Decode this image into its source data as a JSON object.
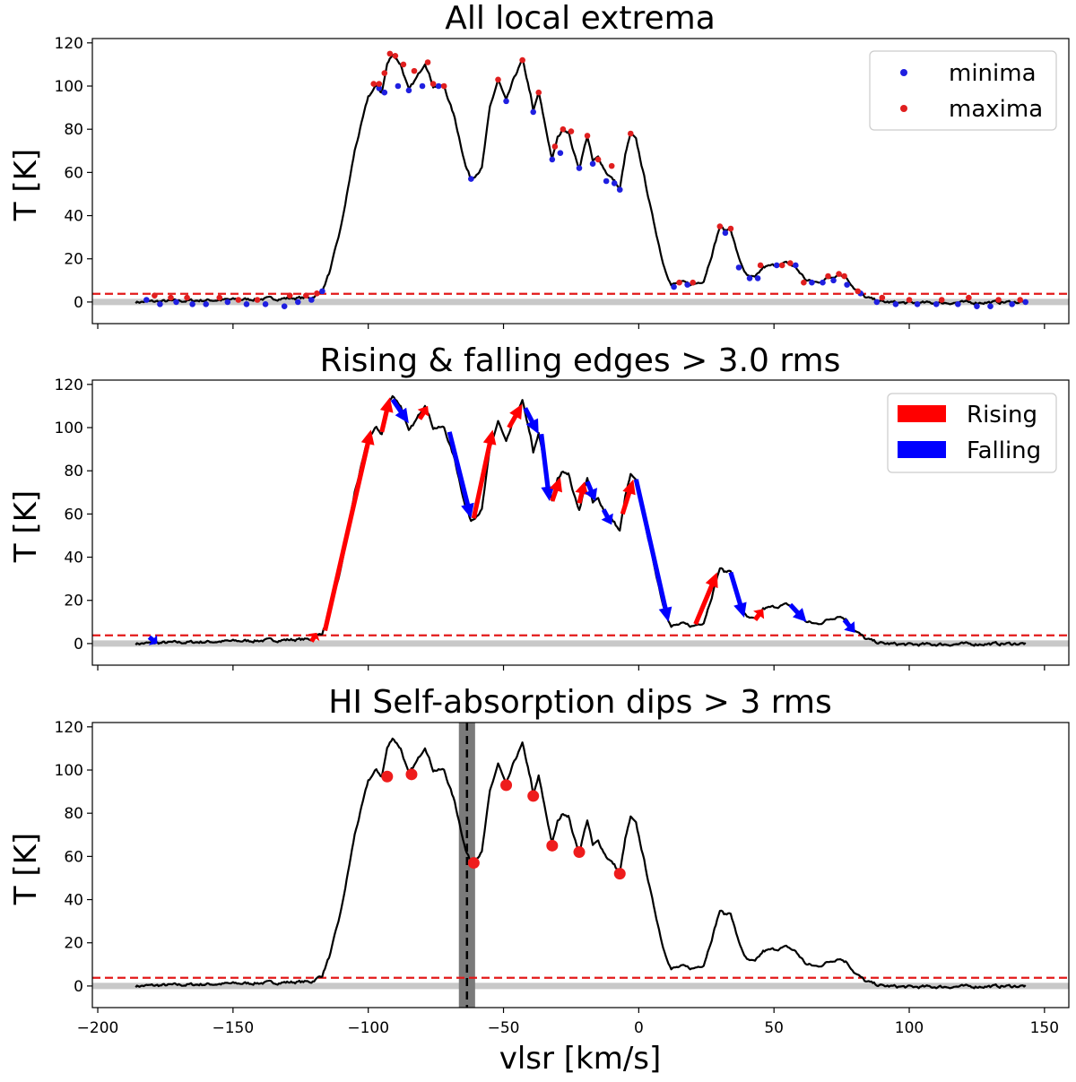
{
  "chart_data": [
    {
      "type": "line",
      "title": "All local extrema",
      "xlabel": "vlsr [km/s]",
      "ylabel": "T [K]",
      "xlim": [
        -202,
        159
      ],
      "ylim": [
        -10,
        122
      ],
      "yticks": [
        0,
        20,
        40,
        60,
        80,
        100,
        120
      ],
      "threshold": 3.8,
      "baseline": 0,
      "legend": {
        "position": "top-right",
        "entries": [
          {
            "label": "minima",
            "color": "#1f1fe0"
          },
          {
            "label": "maxima",
            "color": "#e01f1f"
          }
        ]
      },
      "minima": [
        [
          -182,
          1
        ],
        [
          -177,
          -1
        ],
        [
          -171,
          0
        ],
        [
          -165,
          -1
        ],
        [
          -160,
          -1
        ],
        [
          -152,
          0
        ],
        [
          -145,
          -1
        ],
        [
          -138,
          -1
        ],
        [
          -131,
          -2
        ],
        [
          -126,
          0
        ],
        [
          -121,
          1
        ],
        [
          -117,
          5
        ],
        [
          -96,
          99
        ],
        [
          -94,
          97
        ],
        [
          -89,
          100
        ],
        [
          -85,
          98
        ],
        [
          -80,
          100
        ],
        [
          -74,
          100
        ],
        [
          -62,
          57
        ],
        [
          -49,
          93
        ],
        [
          -39,
          88
        ],
        [
          -32,
          66
        ],
        [
          -29,
          69
        ],
        [
          -22,
          62
        ],
        [
          -17,
          64
        ],
        [
          -12,
          56
        ],
        [
          -9,
          55
        ],
        [
          -7,
          52
        ],
        [
          13,
          7
        ],
        [
          18,
          8
        ],
        [
          32,
          32
        ],
        [
          37,
          16
        ],
        [
          41,
          11
        ],
        [
          44,
          11
        ],
        [
          51,
          17
        ],
        [
          58,
          17
        ],
        [
          64,
          9
        ],
        [
          68,
          9
        ],
        [
          72,
          10
        ],
        [
          77,
          8
        ],
        [
          82,
          4
        ],
        [
          88,
          0
        ],
        [
          95,
          -1
        ],
        [
          103,
          -1
        ],
        [
          110,
          -1
        ],
        [
          118,
          -1
        ],
        [
          125,
          -2
        ],
        [
          130,
          -2
        ],
        [
          138,
          -1
        ],
        [
          143,
          0
        ]
      ],
      "maxima": [
        [
          -179,
          3
        ],
        [
          -173,
          2
        ],
        [
          -167,
          2
        ],
        [
          -155,
          2
        ],
        [
          -148,
          1
        ],
        [
          -141,
          1
        ],
        [
          -129,
          3
        ],
        [
          -123,
          3
        ],
        [
          -119,
          4
        ],
        [
          -98,
          101
        ],
        [
          -96,
          101
        ],
        [
          -94,
          106
        ],
        [
          -92,
          115
        ],
        [
          -90,
          114
        ],
        [
          -87,
          110
        ],
        [
          -83,
          107
        ],
        [
          -78,
          111
        ],
        [
          -76,
          101
        ],
        [
          -72,
          100
        ],
        [
          -52,
          103
        ],
        [
          -43,
          112
        ],
        [
          -37,
          97
        ],
        [
          -31,
          72
        ],
        [
          -28,
          80
        ],
        [
          -25,
          79
        ],
        [
          -19,
          77
        ],
        [
          -15,
          66
        ],
        [
          -10,
          63
        ],
        [
          -3,
          78
        ],
        [
          15,
          9
        ],
        [
          20,
          9
        ],
        [
          30,
          35
        ],
        [
          34,
          34
        ],
        [
          45,
          17
        ],
        [
          53,
          17
        ],
        [
          56,
          18
        ],
        [
          61,
          9
        ],
        [
          70,
          12
        ],
        [
          74,
          13
        ],
        [
          76,
          12
        ],
        [
          81,
          5
        ],
        [
          90,
          2
        ],
        [
          100,
          1
        ],
        [
          112,
          1
        ],
        [
          122,
          2
        ],
        [
          133,
          1
        ],
        [
          141,
          1
        ]
      ]
    },
    {
      "type": "line",
      "title": "Rising & falling edges > 3.0 rms",
      "xlabel": "vlsr [km/s]",
      "ylabel": "T [K]",
      "xlim": [
        -202,
        159
      ],
      "ylim": [
        -10,
        122
      ],
      "yticks": [
        0,
        20,
        40,
        60,
        80,
        100,
        120
      ],
      "threshold": 3.8,
      "baseline": 0,
      "legend": {
        "position": "top-right",
        "entries": [
          {
            "label": "Rising",
            "color": "#ff0000"
          },
          {
            "label": "Falling",
            "color": "#0000ff"
          }
        ]
      },
      "edges": [
        {
          "kind": "rising",
          "from": [
            -116,
            6
          ],
          "to": [
            -99,
            99
          ]
        },
        {
          "kind": "rising",
          "from": [
            -95,
            98
          ],
          "to": [
            -92,
            114
          ]
        },
        {
          "kind": "falling",
          "from": [
            -91,
            113
          ],
          "to": [
            -85,
            102
          ]
        },
        {
          "kind": "rising",
          "from": [
            -81,
            104
          ],
          "to": [
            -78,
            110
          ]
        },
        {
          "kind": "falling",
          "from": [
            -70,
            98
          ],
          "to": [
            -62,
            58
          ]
        },
        {
          "kind": "rising",
          "from": [
            -61,
            58
          ],
          "to": [
            -54,
            99
          ]
        },
        {
          "kind": "rising",
          "from": [
            -48,
            100
          ],
          "to": [
            -43,
            111
          ]
        },
        {
          "kind": "falling",
          "from": [
            -42,
            109
          ],
          "to": [
            -37,
            97
          ]
        },
        {
          "kind": "falling",
          "from": [
            -36,
            97
          ],
          "to": [
            -33,
            66
          ]
        },
        {
          "kind": "rising",
          "from": [
            -32,
            66
          ],
          "to": [
            -29,
            77
          ]
        },
        {
          "kind": "rising",
          "from": [
            -22,
            65
          ],
          "to": [
            -20,
            75
          ]
        },
        {
          "kind": "falling",
          "from": [
            -19,
            75
          ],
          "to": [
            -16,
            66
          ]
        },
        {
          "kind": "falling",
          "from": [
            -13,
            62
          ],
          "to": [
            -10,
            55
          ]
        },
        {
          "kind": "rising",
          "from": [
            -6,
            60
          ],
          "to": [
            -2,
            76
          ]
        },
        {
          "kind": "falling",
          "from": [
            -1,
            76
          ],
          "to": [
            11,
            10
          ]
        },
        {
          "kind": "rising",
          "from": [
            21,
            9
          ],
          "to": [
            29,
            33
          ]
        },
        {
          "kind": "falling",
          "from": [
            34,
            33
          ],
          "to": [
            39,
            12
          ]
        },
        {
          "kind": "rising",
          "from": [
            43,
            11
          ],
          "to": [
            46,
            16
          ]
        },
        {
          "kind": "falling",
          "from": [
            56,
            18
          ],
          "to": [
            62,
            10
          ]
        },
        {
          "kind": "falling",
          "from": [
            76,
            11
          ],
          "to": [
            80,
            5
          ]
        },
        {
          "kind": "rising",
          "from": [
            -121,
            1
          ],
          "to": [
            -119,
            5
          ]
        },
        {
          "kind": "falling",
          "from": [
            -181,
            3
          ],
          "to": [
            -178,
            0
          ]
        }
      ]
    },
    {
      "type": "line",
      "title": "HI Self-absorption dips > 3 rms",
      "xlabel": "vlsr [km/s]",
      "ylabel": "T [K]",
      "xlim": [
        -202,
        159
      ],
      "ylim": [
        -10,
        122
      ],
      "xticks": [
        -200,
        -150,
        -100,
        -50,
        0,
        50,
        100,
        150
      ],
      "xtick_labels": [
        "−200",
        "−150",
        "−100",
        "−50",
        "0",
        "50",
        "100",
        "150"
      ],
      "yticks": [
        0,
        20,
        40,
        60,
        80,
        100,
        120
      ],
      "threshold": 3.8,
      "baseline": 0,
      "vline": {
        "x": -63.5,
        "band": [
          -66.5,
          -60.5
        ]
      },
      "dips": [
        [
          -93,
          97
        ],
        [
          -84,
          98
        ],
        [
          -61,
          57
        ],
        [
          -49,
          93
        ],
        [
          -39,
          88
        ],
        [
          -32,
          65
        ],
        [
          -22,
          62
        ],
        [
          -7,
          52
        ]
      ]
    }
  ],
  "spectrum": {
    "v_min": -186,
    "v_max": 143,
    "knots": [
      [
        -186,
        0
      ],
      [
        -121,
        2
      ],
      [
        -117,
        5
      ],
      [
        -114,
        15
      ],
      [
        -110,
        35
      ],
      [
        -105,
        70
      ],
      [
        -100,
        95
      ],
      [
        -97,
        100
      ],
      [
        -95,
        97
      ],
      [
        -93,
        110
      ],
      [
        -91,
        115
      ],
      [
        -88,
        110
      ],
      [
        -85,
        98
      ],
      [
        -82,
        104
      ],
      [
        -79,
        111
      ],
      [
        -76,
        100
      ],
      [
        -72,
        100
      ],
      [
        -68,
        85
      ],
      [
        -64,
        63
      ],
      [
        -62,
        57
      ],
      [
        -58,
        62
      ],
      [
        -55,
        90
      ],
      [
        -52,
        103
      ],
      [
        -49,
        93
      ],
      [
        -46,
        104
      ],
      [
        -43,
        112
      ],
      [
        -40,
        96
      ],
      [
        -39,
        88
      ],
      [
        -37,
        97
      ],
      [
        -34,
        78
      ],
      [
        -32,
        66
      ],
      [
        -30,
        76
      ],
      [
        -28,
        80
      ],
      [
        -26,
        79
      ],
      [
        -24,
        69
      ],
      [
        -22,
        62
      ],
      [
        -19,
        77
      ],
      [
        -17,
        65
      ],
      [
        -15,
        67
      ],
      [
        -12,
        60
      ],
      [
        -9,
        56
      ],
      [
        -7,
        52
      ],
      [
        -5,
        68
      ],
      [
        -3,
        78
      ],
      [
        -1,
        75
      ],
      [
        2,
        58
      ],
      [
        5,
        40
      ],
      [
        9,
        18
      ],
      [
        12,
        8
      ],
      [
        16,
        9
      ],
      [
        20,
        8
      ],
      [
        24,
        10
      ],
      [
        27,
        22
      ],
      [
        30,
        35
      ],
      [
        32,
        33
      ],
      [
        34,
        34
      ],
      [
        37,
        20
      ],
      [
        40,
        12
      ],
      [
        43,
        11
      ],
      [
        46,
        16
      ],
      [
        50,
        17
      ],
      [
        55,
        18
      ],
      [
        58,
        16
      ],
      [
        62,
        10
      ],
      [
        66,
        9
      ],
      [
        70,
        11
      ],
      [
        74,
        13
      ],
      [
        77,
        11
      ],
      [
        80,
        6
      ],
      [
        84,
        2
      ],
      [
        90,
        0
      ],
      [
        100,
        -0.5
      ],
      [
        143,
        0
      ]
    ],
    "noise_seed": 7
  }
}
